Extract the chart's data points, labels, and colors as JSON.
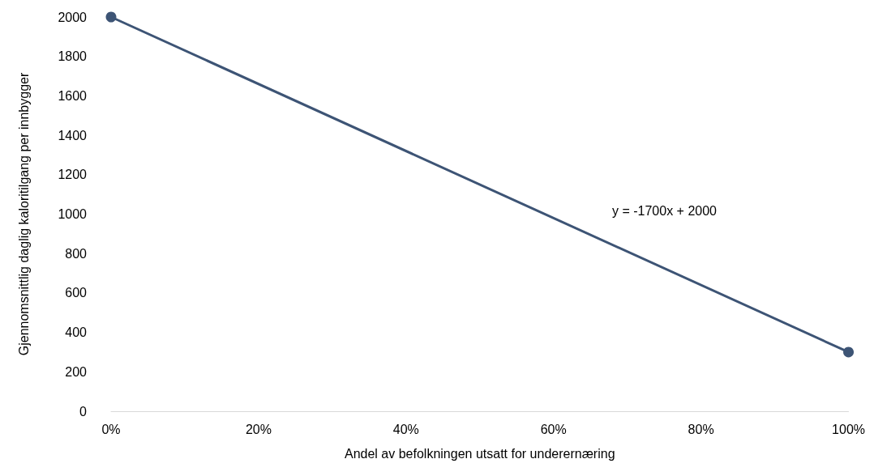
{
  "chart_data": {
    "type": "line",
    "xlabel": "Andel av befolkningen utsatt for underernæring",
    "ylabel": "Gjennomsnittlig daglig kaloritilgang per innbygger",
    "x": [
      0,
      1
    ],
    "series": [
      {
        "color": "#3d5475",
        "values": [
          2000,
          300
        ]
      }
    ],
    "xlim": [
      0,
      1
    ],
    "xticks": [
      {
        "value": 0,
        "label": "0%"
      },
      {
        "value": 0.2,
        "label": "20%"
      },
      {
        "value": 0.4,
        "label": "40%"
      },
      {
        "value": 0.6,
        "label": "60%"
      },
      {
        "value": 0.8,
        "label": "80%"
      },
      {
        "value": 1,
        "label": "100%"
      }
    ],
    "ylim": [
      0,
      2000
    ],
    "yticks": [
      0,
      200,
      400,
      600,
      800,
      1000,
      1200,
      1400,
      1600,
      1800,
      2000
    ],
    "annotations": [
      "y = -1700x + 2000"
    ],
    "marker": "circle",
    "line_style": "solid",
    "grid": false
  }
}
